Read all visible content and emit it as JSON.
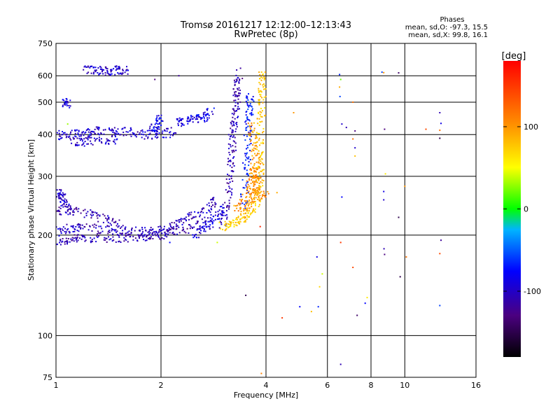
{
  "chart_data": {
    "type": "scatter",
    "title": "Tromsø 20161217 12:12:00–12:13:43",
    "subtitle": "RwPretec (8p)",
    "stats": {
      "header": "Phases",
      "line1": "mean, sd,O: -97.3, 15.5",
      "line2": "mean, sd,X:  99.8, 16.1"
    },
    "xlabel": "Frequency [MHz]",
    "ylabel": "Stationary phase Virtual Height [km]",
    "x_scale": "log",
    "y_scale": "log",
    "xlim": [
      1,
      16
    ],
    "ylim": [
      75,
      750
    ],
    "x_ticks": [
      1,
      2,
      4,
      6,
      8,
      10,
      16
    ],
    "x_tick_labels": [
      "1",
      "2",
      "4",
      "6",
      "8",
      "10",
      "16"
    ],
    "y_ticks": [
      75,
      100,
      200,
      300,
      400,
      500,
      600,
      750
    ],
    "y_tick_labels": [
      "75",
      "100",
      "200",
      "300",
      "400",
      "500",
      "600",
      "750"
    ],
    "grid": true,
    "colorbar": {
      "label": "[deg]",
      "range": [
        -180,
        180
      ],
      "ticks": [
        100,
        0,
        -100
      ],
      "tick_labels": [
        "100",
        "0",
        "-100"
      ]
    },
    "traces": [
      {
        "phase": -110,
        "points": [
          [
            1.0,
            190
          ],
          [
            1.1,
            194
          ],
          [
            1.2,
            196
          ],
          [
            1.4,
            196
          ],
          [
            1.6,
            196
          ],
          [
            1.8,
            198
          ],
          [
            2.0,
            200
          ],
          [
            2.2,
            205
          ],
          [
            2.5,
            212
          ],
          [
            2.8,
            224
          ]
        ]
      },
      {
        "phase": -105,
        "points": [
          [
            1.0,
            205
          ],
          [
            1.1,
            210
          ],
          [
            1.2,
            212
          ],
          [
            1.4,
            208
          ],
          [
            1.6,
            205
          ],
          [
            1.8,
            205
          ],
          [
            2.0,
            206
          ],
          [
            2.2,
            215
          ],
          [
            2.4,
            225
          ],
          [
            2.7,
            240
          ],
          [
            2.9,
            255
          ]
        ]
      },
      {
        "phase": -112,
        "points": [
          [
            1.0,
            238
          ],
          [
            1.1,
            236
          ],
          [
            1.25,
            232
          ],
          [
            1.4,
            222
          ],
          [
            1.55,
            214
          ]
        ]
      },
      {
        "phase": -100,
        "points": [
          [
            1.0,
            270
          ],
          [
            1.02,
            265
          ],
          [
            1.05,
            255
          ],
          [
            1.08,
            240
          ]
        ]
      },
      {
        "phase": -100,
        "points": [
          [
            1.0,
            398
          ],
          [
            1.1,
            400
          ],
          [
            1.2,
            405
          ],
          [
            1.3,
            410
          ],
          [
            1.45,
            410
          ],
          [
            1.6,
            408
          ],
          [
            1.8,
            400
          ],
          [
            2.0,
            400
          ],
          [
            2.2,
            410
          ]
        ]
      },
      {
        "phase": -105,
        "points": [
          [
            1.1,
            382
          ],
          [
            1.2,
            380
          ],
          [
            1.35,
            382
          ],
          [
            1.5,
            388
          ]
        ]
      },
      {
        "phase": -90,
        "points": [
          [
            2.2,
            430
          ],
          [
            2.35,
            440
          ],
          [
            2.5,
            445
          ],
          [
            2.65,
            450
          ],
          [
            2.8,
            470
          ]
        ]
      },
      {
        "phase": -100,
        "points": [
          [
            1.2,
            624
          ],
          [
            1.3,
            622
          ],
          [
            1.4,
            620
          ],
          [
            1.5,
            624
          ],
          [
            1.6,
            622
          ]
        ]
      },
      {
        "phase": -95,
        "points": [
          [
            1.05,
            500
          ],
          [
            1.08,
            495
          ]
        ]
      },
      {
        "phase": -90,
        "points": [
          [
            1.9,
            412
          ],
          [
            1.95,
            430
          ],
          [
            2.0,
            450
          ]
        ]
      },
      {
        "phase": -95,
        "points": [
          [
            2.5,
            200
          ],
          [
            2.7,
            210
          ],
          [
            2.9,
            225
          ],
          [
            3.0,
            240
          ]
        ]
      },
      {
        "phase": -110,
        "points": [
          [
            3.0,
            215
          ],
          [
            3.1,
            250
          ],
          [
            3.15,
            300
          ],
          [
            3.2,
            350
          ],
          [
            3.2,
            400
          ],
          [
            3.25,
            450
          ],
          [
            3.3,
            500
          ],
          [
            3.3,
            550
          ],
          [
            3.35,
            620
          ]
        ]
      },
      {
        "phase": -75,
        "points": [
          [
            3.45,
            240
          ],
          [
            3.5,
            300
          ],
          [
            3.55,
            360
          ],
          [
            3.55,
            430
          ],
          [
            3.6,
            480
          ],
          [
            3.6,
            520
          ]
        ]
      },
      {
        "phase": 75,
        "points": [
          [
            3.0,
            212
          ],
          [
            3.2,
            216
          ],
          [
            3.4,
            222
          ],
          [
            3.6,
            232
          ],
          [
            3.8,
            255
          ],
          [
            3.85,
            300
          ],
          [
            3.85,
            350
          ],
          [
            3.85,
            420
          ],
          [
            3.9,
            490
          ],
          [
            3.9,
            560
          ],
          [
            3.9,
            610
          ]
        ]
      },
      {
        "phase": 95,
        "points": [
          [
            3.4,
            230
          ],
          [
            3.6,
            250
          ],
          [
            3.75,
            270
          ],
          [
            3.8,
            300
          ],
          [
            3.75,
            340
          ],
          [
            3.7,
            380
          ],
          [
            3.6,
            430
          ]
        ]
      },
      {
        "phase": 105,
        "points": [
          [
            3.3,
            240
          ],
          [
            3.5,
            260
          ],
          [
            3.65,
            290
          ],
          [
            3.7,
            320
          ],
          [
            3.8,
            260
          ],
          [
            4.0,
            265
          ]
        ]
      }
    ],
    "scatter_points": [
      {
        "f": 1.08,
        "h": 430,
        "phase": 30
      },
      {
        "f": 1.25,
        "h": 400,
        "phase": -60
      },
      {
        "f": 1.92,
        "h": 585,
        "phase": -130
      },
      {
        "f": 1.7,
        "h": 400,
        "phase": -140
      },
      {
        "f": 2.12,
        "h": 190,
        "phase": -80
      },
      {
        "f": 2.25,
        "h": 600,
        "phase": -120
      },
      {
        "f": 2.9,
        "h": 190,
        "phase": 40
      },
      {
        "f": 3.5,
        "h": 132,
        "phase": -150
      },
      {
        "f": 3.85,
        "h": 212,
        "phase": 160
      },
      {
        "f": 3.88,
        "h": 77,
        "phase": 110
      },
      {
        "f": 4.3,
        "h": 268,
        "phase": 90
      },
      {
        "f": 4.45,
        "h": 113,
        "phase": 150
      },
      {
        "f": 4.8,
        "h": 465,
        "phase": 100
      },
      {
        "f": 5.0,
        "h": 122,
        "phase": -80
      },
      {
        "f": 5.4,
        "h": 118,
        "phase": 80
      },
      {
        "f": 5.6,
        "h": 172,
        "phase": -90
      },
      {
        "f": 5.7,
        "h": 140,
        "phase": 70
      },
      {
        "f": 5.65,
        "h": 122,
        "phase": -70
      },
      {
        "f": 5.8,
        "h": 153,
        "phase": 40
      },
      {
        "f": 6.5,
        "h": 605,
        "phase": -70
      },
      {
        "f": 6.55,
        "h": 585,
        "phase": 20
      },
      {
        "f": 6.5,
        "h": 555,
        "phase": 90
      },
      {
        "f": 6.52,
        "h": 520,
        "phase": -60
      },
      {
        "f": 6.6,
        "h": 430,
        "phase": -100
      },
      {
        "f": 6.8,
        "h": 420,
        "phase": -110
      },
      {
        "f": 6.6,
        "h": 260,
        "phase": -80
      },
      {
        "f": 6.55,
        "h": 190,
        "phase": 150
      },
      {
        "f": 6.55,
        "h": 82,
        "phase": -110
      },
      {
        "f": 7.1,
        "h": 500,
        "phase": 120
      },
      {
        "f": 7.2,
        "h": 410,
        "phase": -130
      },
      {
        "f": 7.1,
        "h": 388,
        "phase": 120
      },
      {
        "f": 7.2,
        "h": 365,
        "phase": -100
      },
      {
        "f": 7.2,
        "h": 345,
        "phase": 80
      },
      {
        "f": 7.1,
        "h": 160,
        "phase": 140
      },
      {
        "f": 7.3,
        "h": 115,
        "phase": -140
      },
      {
        "f": 7.7,
        "h": 125,
        "phase": -80
      },
      {
        "f": 7.8,
        "h": 130,
        "phase": 60
      },
      {
        "f": 8.6,
        "h": 615,
        "phase": -60
      },
      {
        "f": 8.7,
        "h": 613,
        "phase": 100
      },
      {
        "f": 8.75,
        "h": 415,
        "phase": -130
      },
      {
        "f": 8.8,
        "h": 305,
        "phase": 60
      },
      {
        "f": 8.7,
        "h": 270,
        "phase": -90
      },
      {
        "f": 8.7,
        "h": 255,
        "phase": -100
      },
      {
        "f": 8.72,
        "h": 182,
        "phase": -110
      },
      {
        "f": 8.75,
        "h": 175,
        "phase": -130
      },
      {
        "f": 9.6,
        "h": 612,
        "phase": -140
      },
      {
        "f": 9.6,
        "h": 226,
        "phase": -150
      },
      {
        "f": 9.7,
        "h": 150,
        "phase": -150
      },
      {
        "f": 10.0,
        "h": 280,
        "phase": 100
      },
      {
        "f": 10.1,
        "h": 172,
        "phase": 120
      },
      {
        "f": 11.5,
        "h": 415,
        "phase": 140
      },
      {
        "f": 12.6,
        "h": 465,
        "phase": -110
      },
      {
        "f": 12.7,
        "h": 432,
        "phase": -90
      },
      {
        "f": 12.6,
        "h": 412,
        "phase": 120
      },
      {
        "f": 12.6,
        "h": 390,
        "phase": -150
      },
      {
        "f": 12.7,
        "h": 193,
        "phase": -120
      },
      {
        "f": 12.6,
        "h": 176,
        "phase": 140
      },
      {
        "f": 12.6,
        "h": 123,
        "phase": -60
      }
    ]
  }
}
